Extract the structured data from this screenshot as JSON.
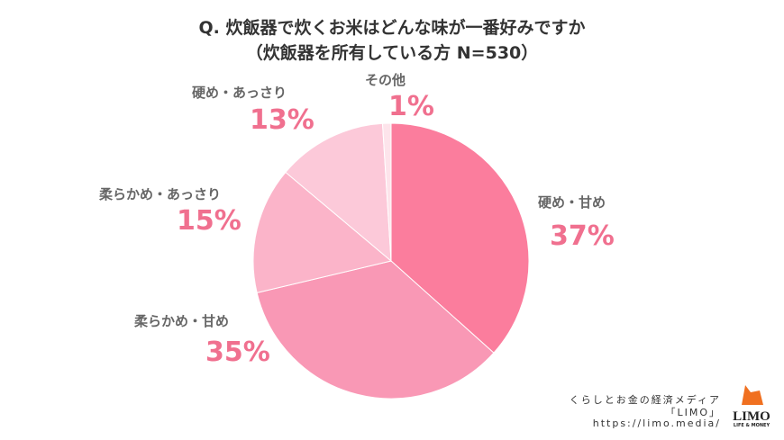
{
  "chart_data": {
    "type": "pie",
    "title": "Q. 炊飯器で炊くお米はどんな味が一番好みですか",
    "subtitle": "（炊飯器を所有している方 N=530）",
    "start": "top",
    "direction": "clockwise",
    "slices": [
      {
        "label": "硬め・甘め",
        "value": 37,
        "display": "37%",
        "color": "#fb7d9d"
      },
      {
        "label": "柔らかめ・甘め",
        "value": 35,
        "display": "35%",
        "color": "#f998b5"
      },
      {
        "label": "柔らかめ・あっさり",
        "value": 15,
        "display": "15%",
        "color": "#fbb4c9"
      },
      {
        "label": "硬め・あっさり",
        "value": 13,
        "display": "13%",
        "color": "#fcc9d9"
      },
      {
        "label": "その他",
        "value": 1,
        "display": "1%",
        "color": "#fde4eb"
      }
    ]
  },
  "footer": {
    "line1": "くらしとお金の経済メディア",
    "line2": "「LIMO」",
    "line3": "https://limo.media/",
    "logo_text": "LIMO",
    "logo_sub": "LIFE & MONEY"
  }
}
